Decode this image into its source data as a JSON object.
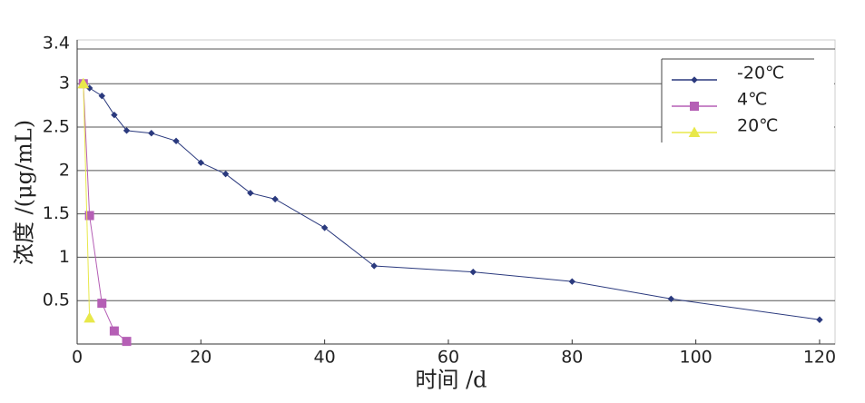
{
  "chart_data": {
    "type": "line",
    "x_label": "时间 /d",
    "y_label": "浓度 /(μg/mL)",
    "xlim": [
      0,
      122.5
    ],
    "xticks": [
      0,
      20,
      40,
      60,
      80,
      100,
      120
    ],
    "ylim": [
      0,
      3.4
    ],
    "yticks": [
      0.5,
      1,
      1.5,
      2,
      2.5,
      3,
      3.4
    ],
    "grid": true,
    "legend": "upper right",
    "series": [
      {
        "name": "-20℃",
        "color": "#2b3a7e",
        "marker": "diamond",
        "x": [
          1,
          2,
          4,
          6,
          8,
          12,
          16,
          20,
          24,
          28,
          32,
          40,
          48,
          64,
          80,
          96,
          120
        ],
        "values": [
          3.0,
          2.95,
          2.86,
          2.64,
          2.46,
          2.43,
          2.34,
          2.09,
          1.96,
          1.74,
          1.67,
          1.34,
          0.9,
          0.83,
          0.72,
          0.52,
          0.28
        ]
      },
      {
        "name": "4℃",
        "color": "#b55fb5",
        "marker": "square",
        "x": [
          1,
          2,
          4,
          6,
          8
        ],
        "values": [
          3.0,
          1.48,
          0.47,
          0.15,
          0.03
        ]
      },
      {
        "name": "20℃",
        "color": "#e8e84a",
        "marker": "triangle",
        "x": [
          1,
          2
        ],
        "values": [
          3.0,
          0.3
        ]
      }
    ]
  }
}
